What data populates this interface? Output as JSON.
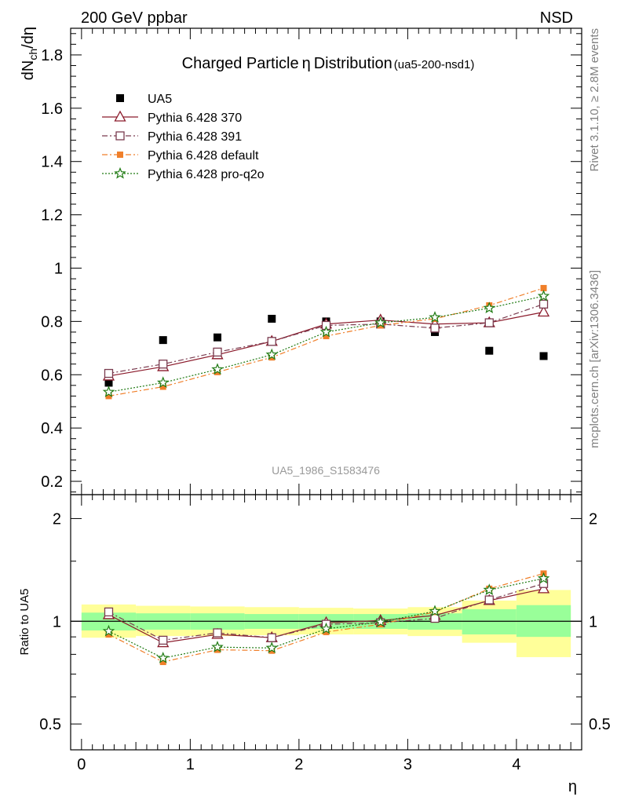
{
  "header": {
    "left": "200 GeV ppbar",
    "right": "NSD"
  },
  "side_text": {
    "rivet": "Rivet 3.1.10, ≥ 2.8M events",
    "mcplots": "mcplots.cern.ch [arXiv:1306.3436]"
  },
  "chart_data": [
    {
      "type": "scatter",
      "title_main": "Charged Particle",
      "title_eta": "η",
      "title_main2": "Distribution",
      "title_sub": "(ua5-200-nsd1)",
      "ylabel": "dN_ch/dη",
      "ylabel_parts": {
        "a": "dN",
        "sub": "ch",
        "b": "/dη"
      },
      "analysis_label": "UA5_1986_S1583476",
      "xlim": [
        -0.1,
        4.6
      ],
      "ylim": [
        0.15,
        1.9
      ],
      "yticks": [
        "0.2",
        "0.4",
        "0.6",
        "0.8",
        "1",
        "1.2",
        "1.4",
        "1.6",
        "1.8"
      ],
      "ytick_values": [
        0.2,
        0.4,
        0.6,
        0.8,
        1.0,
        1.2,
        1.4,
        1.6,
        1.8
      ],
      "legend_position": "top-left",
      "x": [
        0.25,
        0.75,
        1.25,
        1.75,
        2.25,
        2.75,
        3.25,
        3.75,
        4.25
      ],
      "series": [
        {
          "name": "UA5",
          "color": "#000000",
          "marker": "square-filled",
          "line": "none",
          "values": [
            0.57,
            0.73,
            0.74,
            0.81,
            0.8,
            0.8,
            0.76,
            0.69,
            0.67
          ]
        },
        {
          "name": "Pythia 6.428 370",
          "color": "#8b1a2b",
          "marker": "triangle-open",
          "line": "solid",
          "values": [
            0.595,
            0.63,
            0.675,
            0.725,
            0.79,
            0.805,
            0.79,
            0.795,
            0.835
          ]
        },
        {
          "name": "Pythia 6.428 391",
          "color": "#7a3b4f",
          "marker": "square-open",
          "line": "dashdot",
          "values": [
            0.605,
            0.64,
            0.685,
            0.725,
            0.785,
            0.79,
            0.775,
            0.795,
            0.865
          ]
        },
        {
          "name": "Pythia 6.428 default",
          "color": "#f07f2a",
          "marker": "square-filled-small",
          "line": "dashdot",
          "values": [
            0.52,
            0.555,
            0.61,
            0.665,
            0.745,
            0.785,
            0.81,
            0.86,
            0.925
          ]
        },
        {
          "name": "Pythia 6.428 pro-q2o",
          "color": "#1f7a12",
          "marker": "star",
          "line": "dotted",
          "values": [
            0.535,
            0.57,
            0.62,
            0.675,
            0.76,
            0.795,
            0.815,
            0.85,
            0.895
          ]
        }
      ]
    },
    {
      "type": "line",
      "ylabel": "Ratio to UA5",
      "xlabel": "η",
      "xlim": [
        -0.1,
        4.6
      ],
      "ylim": [
        0.42,
        2.35
      ],
      "yscale": "log",
      "yticks": [
        "0.5",
        "1",
        "2"
      ],
      "ytick_values": [
        0.5,
        1,
        2
      ],
      "xticks": [
        "0",
        "1",
        "2",
        "3",
        "4"
      ],
      "xtick_values": [
        0,
        1,
        2,
        3,
        4
      ],
      "band_edges": [
        0,
        0.5,
        1,
        1.5,
        2,
        2.5,
        3,
        3.5,
        4,
        4.5
      ],
      "band_stat": [
        [
          0.94,
          1.06
        ],
        [
          0.945,
          1.055
        ],
        [
          0.945,
          1.055
        ],
        [
          0.95,
          1.05
        ],
        [
          0.95,
          1.05
        ],
        [
          0.95,
          1.05
        ],
        [
          0.945,
          1.055
        ],
        [
          0.915,
          1.085
        ],
        [
          0.9,
          1.115
        ]
      ],
      "band_total": [
        [
          0.895,
          1.12
        ],
        [
          0.905,
          1.11
        ],
        [
          0.905,
          1.105
        ],
        [
          0.91,
          1.1
        ],
        [
          0.915,
          1.095
        ],
        [
          0.915,
          1.09
        ],
        [
          0.905,
          1.1
        ],
        [
          0.865,
          1.15
        ],
        [
          0.785,
          1.235
        ]
      ],
      "band_colors": {
        "stat": "#99ff99",
        "total": "#ffff99"
      },
      "x": [
        0.25,
        0.75,
        1.25,
        1.75,
        2.25,
        2.75,
        3.25,
        3.75,
        4.25
      ],
      "series": [
        {
          "name": "Pythia 6.428 370",
          "color": "#8b1a2b",
          "marker": "triangle-open",
          "line": "solid",
          "values": [
            1.045,
            0.865,
            0.915,
            0.895,
            0.99,
            1.005,
            1.04,
            1.15,
            1.245
          ]
        },
        {
          "name": "Pythia 6.428 391",
          "color": "#7a3b4f",
          "marker": "square-open",
          "line": "dashdot",
          "values": [
            1.065,
            0.88,
            0.925,
            0.895,
            0.98,
            0.99,
            1.02,
            1.155,
            1.29
          ]
        },
        {
          "name": "Pythia 6.428 default",
          "color": "#f07f2a",
          "marker": "square-filled-small",
          "line": "dashdot",
          "values": [
            0.915,
            0.76,
            0.825,
            0.82,
            0.93,
            0.98,
            1.065,
            1.245,
            1.38
          ]
        },
        {
          "name": "Pythia 6.428 pro-q2o",
          "color": "#1f7a12",
          "marker": "star",
          "line": "dotted",
          "values": [
            0.935,
            0.78,
            0.84,
            0.835,
            0.95,
            0.995,
            1.07,
            1.235,
            1.335
          ]
        }
      ]
    }
  ]
}
